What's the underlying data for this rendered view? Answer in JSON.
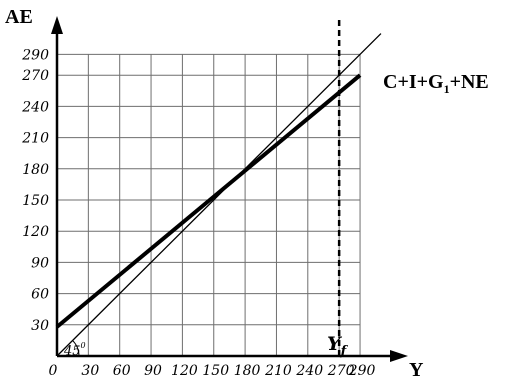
{
  "chart_data": {
    "type": "line",
    "x_axis_label": "Y",
    "y_axis_label": "AE",
    "x_ticks": [
      0,
      30,
      60,
      90,
      120,
      150,
      180,
      210,
      240,
      270,
      290
    ],
    "y_ticks": [
      30,
      60,
      90,
      120,
      150,
      180,
      210,
      240,
      270,
      290
    ],
    "xlim": [
      0,
      290
    ],
    "ylim": [
      0,
      290
    ],
    "grid": true,
    "series": [
      {
        "name": "C+I+G",
        "name_subscript": "1",
        "name_suffix": "+NE",
        "points": [
          [
            0,
            28
          ],
          [
            290,
            270
          ]
        ],
        "style": "thick"
      },
      {
        "name": "",
        "points": [
          [
            0,
            0
          ],
          [
            310,
            310
          ]
        ],
        "style": "thin",
        "angle_label": "45",
        "angle_degree_mark": "0"
      }
    ],
    "vertical_line": {
      "x": 270,
      "style": "dashed",
      "label": "Y",
      "label_subscript": "f"
    }
  }
}
